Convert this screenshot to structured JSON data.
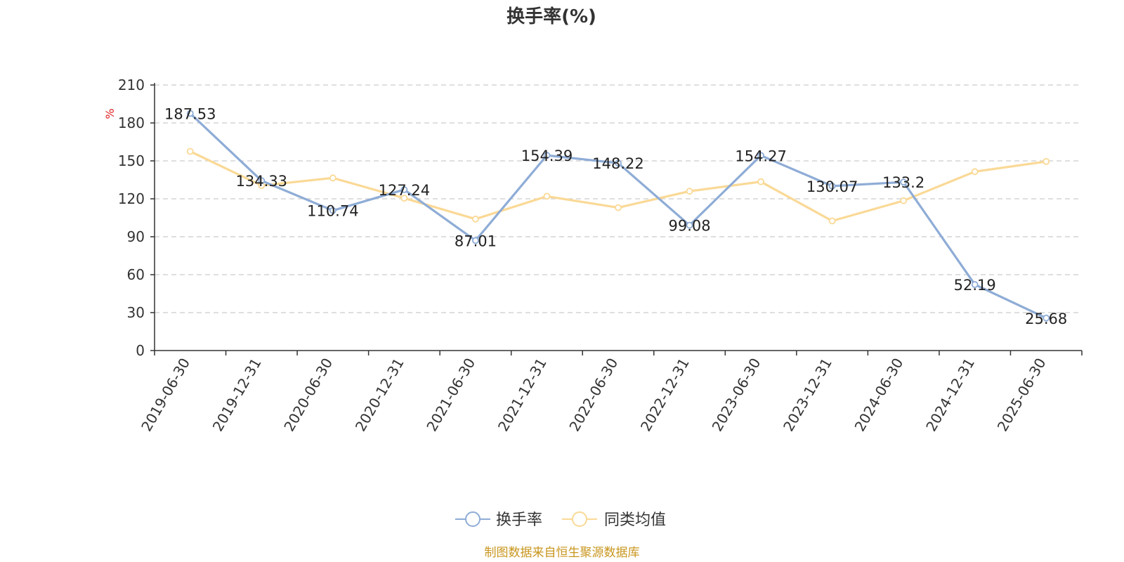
{
  "chart_data": {
    "type": "line",
    "title": "换手率(%)",
    "unit": "%",
    "categories": [
      "2019-06-30",
      "2019-12-31",
      "2020-06-30",
      "2020-12-31",
      "2021-06-30",
      "2021-12-31",
      "2022-06-30",
      "2022-12-31",
      "2023-06-30",
      "2023-12-31",
      "2024-06-30",
      "2024-12-31",
      "2025-06-30"
    ],
    "ylim": [
      0,
      210
    ],
    "yticks": [
      0,
      30,
      60,
      90,
      120,
      150,
      180,
      210
    ],
    "grid": true,
    "legend_position": "bottom",
    "series": [
      {
        "name": "换手率",
        "color": "#8eacd6",
        "values": [
          187.53,
          134.33,
          110.74,
          127.24,
          87.01,
          154.39,
          148.22,
          99.08,
          154.27,
          130.07,
          133.2,
          52.19,
          25.68
        ],
        "data_labels": [
          "187.53",
          "134.33",
          "110.74",
          "127.24",
          "87.01",
          "154.39",
          "148.22",
          "99.08",
          "154.27",
          "130.07",
          "133.2",
          "52.19",
          "25.68"
        ]
      },
      {
        "name": "同类均值",
        "color": "#fad996",
        "values": [
          157.5,
          130.5,
          136.5,
          120.5,
          104,
          122,
          113,
          126,
          133.5,
          102.5,
          118.5,
          141.5,
          149.5
        ]
      }
    ]
  },
  "colors": {
    "unit": "#e02020",
    "source": "#c8961e",
    "axis": "#333333",
    "grid": "#cccccc"
  },
  "footer": {
    "source_text": "制图数据来自恒生聚源数据库"
  }
}
